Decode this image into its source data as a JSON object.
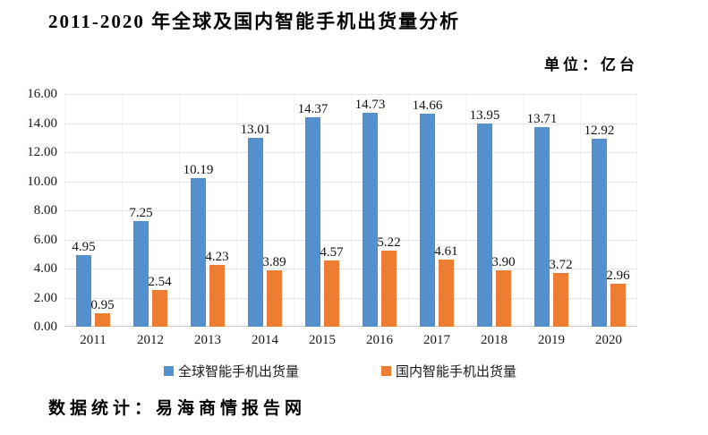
{
  "title": "2011-2020 年全球及国内智能手机出货量分析",
  "unit_label": "单位：亿台",
  "source_label": "数据统计：易海商情报告网",
  "chart_data": {
    "type": "bar",
    "title": "2011-2020 年全球及国内智能手机出货量分析",
    "unit": "亿台",
    "categories": [
      "2011",
      "2012",
      "2013",
      "2014",
      "2015",
      "2016",
      "2017",
      "2018",
      "2019",
      "2020"
    ],
    "series": [
      {
        "name": "全球智能手机出货量",
        "color": "#5291CD",
        "values": [
          4.95,
          7.25,
          10.19,
          13.01,
          14.37,
          14.73,
          14.66,
          13.95,
          13.71,
          12.92
        ]
      },
      {
        "name": "国内智能手机出货量",
        "color": "#ED7D31",
        "values": [
          0.95,
          2.54,
          4.23,
          3.89,
          4.57,
          5.22,
          4.61,
          3.9,
          3.72,
          2.96
        ]
      }
    ],
    "ylim": [
      0,
      16
    ],
    "ytick_step": 2,
    "yticks": [
      "0.00",
      "2.00",
      "4.00",
      "6.00",
      "8.00",
      "10.00",
      "12.00",
      "14.00",
      "16.00"
    ],
    "grid": true,
    "value_labels": true,
    "value_label_format": "0.00",
    "legend_position": "bottom"
  }
}
